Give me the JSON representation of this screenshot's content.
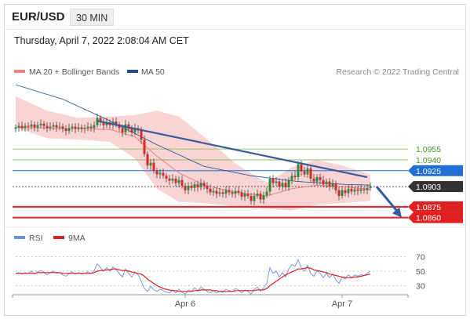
{
  "header": {
    "symbol": "EUR/USD",
    "timeframe": "30 MIN",
    "datetime": "Thursday, April 7, 2022 2:08:04 AM CET"
  },
  "legend": {
    "ma20_bb": "MA 20 + Bollinger Bands",
    "ma50": "MA 50",
    "credit": "Research © 2022 Trading Central",
    "rsi": "RSI",
    "ma9": "9MA"
  },
  "colors": {
    "ma20": "#f08080",
    "bb_fill": "#f9d4d4",
    "ma50": "#1f4e8c",
    "trendline": "#3a5a9a",
    "green": "#7dbb4a",
    "blue_level": "#1f6fd6",
    "red_level": "#e02020",
    "current": "#333333",
    "candle_up": "#2e8b3a",
    "candle_down": "#d42a2a",
    "rsi": "#6b8fe0",
    "rsi_ma": "#e02020"
  },
  "chart_data": [
    {
      "type": "candlestick",
      "title": "EUR/USD 30 MIN",
      "ylim": [
        1.0852,
        1.1055
      ],
      "x_ticks": [
        {
          "i": 54,
          "label": "Apr 6"
        },
        {
          "i": 104,
          "label": "Apr 7"
        }
      ],
      "levels": [
        {
          "value": 1.0955,
          "label": "1.0955",
          "style": "green-thin"
        },
        {
          "value": 1.094,
          "label": "1.0940",
          "style": "green-thin"
        },
        {
          "value": 1.0925,
          "label": "1.0925",
          "style": "blue"
        },
        {
          "value": 1.0903,
          "label": "1.0903",
          "style": "current"
        },
        {
          "value": 1.0875,
          "label": "1.0875",
          "style": "red"
        },
        {
          "value": 1.086,
          "label": "1.0860",
          "style": "red"
        }
      ],
      "trendline": [
        {
          "i": 26,
          "value": 1.0994
        },
        {
          "i": 112,
          "value": 1.0916
        }
      ],
      "projection": [
        {
          "i": 115,
          "value": 1.0903
        },
        {
          "i": 123,
          "value": 1.086
        }
      ],
      "ma50": [
        {
          "i": 0,
          "value": 1.1044
        },
        {
          "i": 15,
          "value": 1.1024
        },
        {
          "i": 30,
          "value": 1.0994
        },
        {
          "i": 45,
          "value": 1.0961
        },
        {
          "i": 60,
          "value": 1.0931
        },
        {
          "i": 75,
          "value": 1.0918
        },
        {
          "i": 90,
          "value": 1.091
        },
        {
          "i": 105,
          "value": 1.0906
        },
        {
          "i": 113,
          "value": 1.0905
        }
      ],
      "ma20": [
        {
          "i": 0,
          "value": 1.0985
        },
        {
          "i": 10,
          "value": 1.0984
        },
        {
          "i": 20,
          "value": 1.0983
        },
        {
          "i": 30,
          "value": 1.0982
        },
        {
          "i": 38,
          "value": 1.0972
        },
        {
          "i": 45,
          "value": 1.0945
        },
        {
          "i": 52,
          "value": 1.0922
        },
        {
          "i": 60,
          "value": 1.0905
        },
        {
          "i": 70,
          "value": 1.0895
        },
        {
          "i": 80,
          "value": 1.089
        },
        {
          "i": 88,
          "value": 1.09
        },
        {
          "i": 96,
          "value": 1.0905
        },
        {
          "i": 104,
          "value": 1.0903
        },
        {
          "i": 113,
          "value": 1.0899
        }
      ],
      "bb_upper": [
        {
          "i": 0,
          "value": 1.1028
        },
        {
          "i": 10,
          "value": 1.1008
        },
        {
          "i": 20,
          "value": 1.0998
        },
        {
          "i": 30,
          "value": 1.1
        },
        {
          "i": 38,
          "value": 1.1002
        },
        {
          "i": 45,
          "value": 1.1008
        },
        {
          "i": 52,
          "value": 1.1
        },
        {
          "i": 60,
          "value": 1.0972
        },
        {
          "i": 70,
          "value": 1.0935
        },
        {
          "i": 80,
          "value": 1.0908
        },
        {
          "i": 88,
          "value": 1.093
        },
        {
          "i": 96,
          "value": 1.094
        },
        {
          "i": 104,
          "value": 1.0932
        },
        {
          "i": 113,
          "value": 1.092
        }
      ],
      "bb_lower": [
        {
          "i": 0,
          "value": 1.0985
        },
        {
          "i": 10,
          "value": 1.097
        },
        {
          "i": 20,
          "value": 1.0968
        },
        {
          "i": 30,
          "value": 1.0965
        },
        {
          "i": 38,
          "value": 1.0942
        },
        {
          "i": 45,
          "value": 1.09
        },
        {
          "i": 52,
          "value": 1.0882
        },
        {
          "i": 60,
          "value": 1.088
        },
        {
          "i": 70,
          "value": 1.0876
        },
        {
          "i": 80,
          "value": 1.0872
        },
        {
          "i": 88,
          "value": 1.087
        },
        {
          "i": 96,
          "value": 1.0878
        },
        {
          "i": 104,
          "value": 1.088
        },
        {
          "i": 113,
          "value": 1.0883
        }
      ],
      "closes": [
        1.0985,
        1.0987,
        1.0984,
        1.0987,
        1.0986,
        1.0989,
        1.0985,
        1.0988,
        1.099,
        1.0987,
        1.0984,
        1.0986,
        1.0988,
        1.0985,
        1.0986,
        1.0983,
        1.098,
        1.0984,
        1.0986,
        1.0983,
        1.0985,
        1.0983,
        1.0984,
        1.0986,
        1.0984,
        1.0988,
        1.0998,
        1.0992,
        1.0988,
        1.0992,
        1.0988,
        1.0993,
        1.0989,
        1.0984,
        1.0978,
        1.0989,
        1.0983,
        1.0978,
        1.0984,
        1.0981,
        1.0968,
        1.0948,
        1.0932,
        1.0936,
        1.0925,
        1.092,
        1.0922,
        1.0918,
        1.0914,
        1.0911,
        1.0914,
        1.0908,
        1.0912,
        1.0904,
        1.0898,
        1.0904,
        1.0901,
        1.0906,
        1.0902,
        1.0908,
        1.0904,
        1.09,
        1.0895,
        1.0897,
        1.0893,
        1.0895,
        1.0893,
        1.0898,
        1.0895,
        1.0893,
        1.0897,
        1.0895,
        1.0889,
        1.0893,
        1.089,
        1.0883,
        1.089,
        1.0893,
        1.0885,
        1.0891,
        1.0896,
        1.0914,
        1.0908,
        1.091,
        1.0903,
        1.0908,
        1.0902,
        1.0912,
        1.0918,
        1.0916,
        1.0934,
        1.0924,
        1.092,
        1.0928,
        1.0914,
        1.091,
        1.0916,
        1.0912,
        1.0906,
        1.091,
        1.0903,
        1.0907,
        1.0898,
        1.089,
        1.0898,
        1.0894,
        1.09,
        1.0896,
        1.0899,
        1.0897,
        1.0899,
        1.0898,
        1.0901,
        1.0903
      ]
    },
    {
      "type": "line",
      "title": "RSI",
      "ylim": [
        0,
        100
      ],
      "y_ticks": [
        70,
        50,
        30
      ],
      "series": [
        {
          "name": "RSI",
          "values": [
            47,
            48,
            46,
            48,
            47,
            50,
            46,
            49,
            51,
            48,
            45,
            48,
            50,
            47,
            48,
            45,
            43,
            47,
            49,
            46,
            48,
            46,
            47,
            49,
            47,
            51,
            60,
            55,
            50,
            55,
            50,
            56,
            52,
            47,
            42,
            53,
            47,
            42,
            49,
            45,
            36,
            26,
            22,
            29,
            24,
            22,
            25,
            23,
            21,
            20,
            24,
            20,
            25,
            21,
            18,
            24,
            22,
            27,
            23,
            28,
            25,
            22,
            20,
            23,
            20,
            22,
            21,
            25,
            23,
            22,
            26,
            24,
            20,
            24,
            22,
            18,
            25,
            28,
            22,
            27,
            33,
            55,
            47,
            50,
            42,
            48,
            42,
            53,
            59,
            57,
            66,
            55,
            50,
            58,
            47,
            43,
            50,
            47,
            41,
            47,
            41,
            46,
            38,
            33,
            42,
            39,
            45,
            41,
            45,
            43,
            45,
            44,
            47,
            50
          ]
        },
        {
          "name": "9MA",
          "values": [
            47,
            47,
            47,
            47,
            47,
            47,
            47,
            48,
            48,
            48,
            48,
            48,
            48,
            48,
            48,
            47,
            47,
            47,
            47,
            47,
            47,
            47,
            47,
            47,
            47,
            48,
            50,
            51,
            51,
            52,
            52,
            53,
            53,
            52,
            51,
            51,
            50,
            49,
            48,
            47,
            46,
            43,
            39,
            36,
            33,
            30,
            28,
            26,
            25,
            24,
            23,
            23,
            22,
            22,
            22,
            22,
            22,
            23,
            23,
            24,
            24,
            24,
            24,
            23,
            23,
            22,
            22,
            22,
            22,
            22,
            23,
            23,
            23,
            23,
            23,
            23,
            23,
            24,
            24,
            24,
            26,
            30,
            33,
            36,
            39,
            42,
            45,
            47,
            49,
            51,
            53,
            53,
            54,
            55,
            54,
            52,
            51,
            50,
            49,
            48,
            46,
            45,
            44,
            43,
            42,
            41,
            41,
            41,
            42,
            42,
            43,
            44,
            45,
            46
          ]
        }
      ]
    }
  ]
}
